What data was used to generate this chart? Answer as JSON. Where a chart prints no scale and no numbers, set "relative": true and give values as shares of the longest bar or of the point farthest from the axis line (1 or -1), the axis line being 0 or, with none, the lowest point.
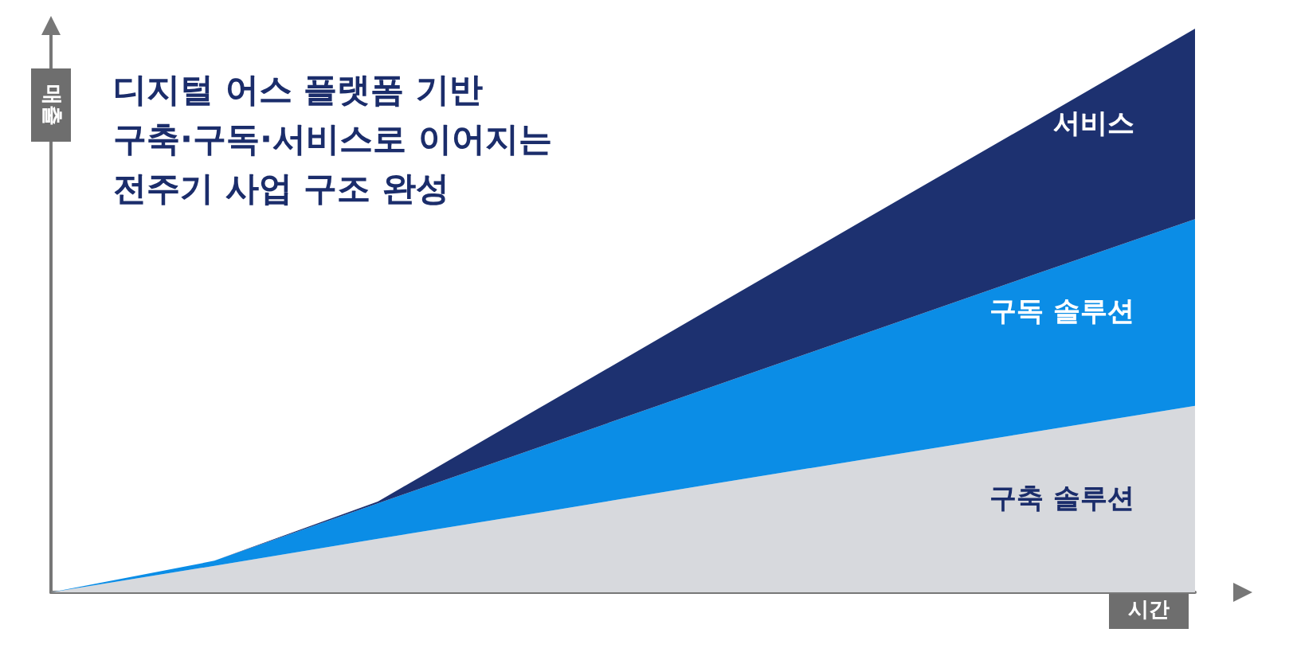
{
  "chart_data": {
    "type": "area",
    "title": "디지털 어스 플랫폼 기반\n구축·구독·서비스로 이어지는\n전주기 사업 구조 완성",
    "xlabel": "시간",
    "ylabel": "매출",
    "relative": true,
    "stacked": true,
    "grid": false,
    "legend": false,
    "categories": [
      null,
      null,
      null,
      null,
      null,
      null,
      null,
      null
    ],
    "series": [
      {
        "name": "구축 솔루션",
        "color": "#d7d9dd",
        "values": [
          0,
          0.047,
          0.095,
          0.142,
          0.19,
          0.237,
          0.284,
          0.331
        ]
      },
      {
        "name": "구독 솔루션",
        "color": "#0b8de6",
        "values": [
          0,
          0.009,
          0.063,
          0.117,
          0.17,
          0.224,
          0.278,
          0.331
        ]
      },
      {
        "name": "서비스",
        "color": "#1d3170",
        "values": [
          0,
          0,
          0.003,
          0.07,
          0.137,
          0.204,
          0.27,
          0.338
        ]
      }
    ]
  }
}
